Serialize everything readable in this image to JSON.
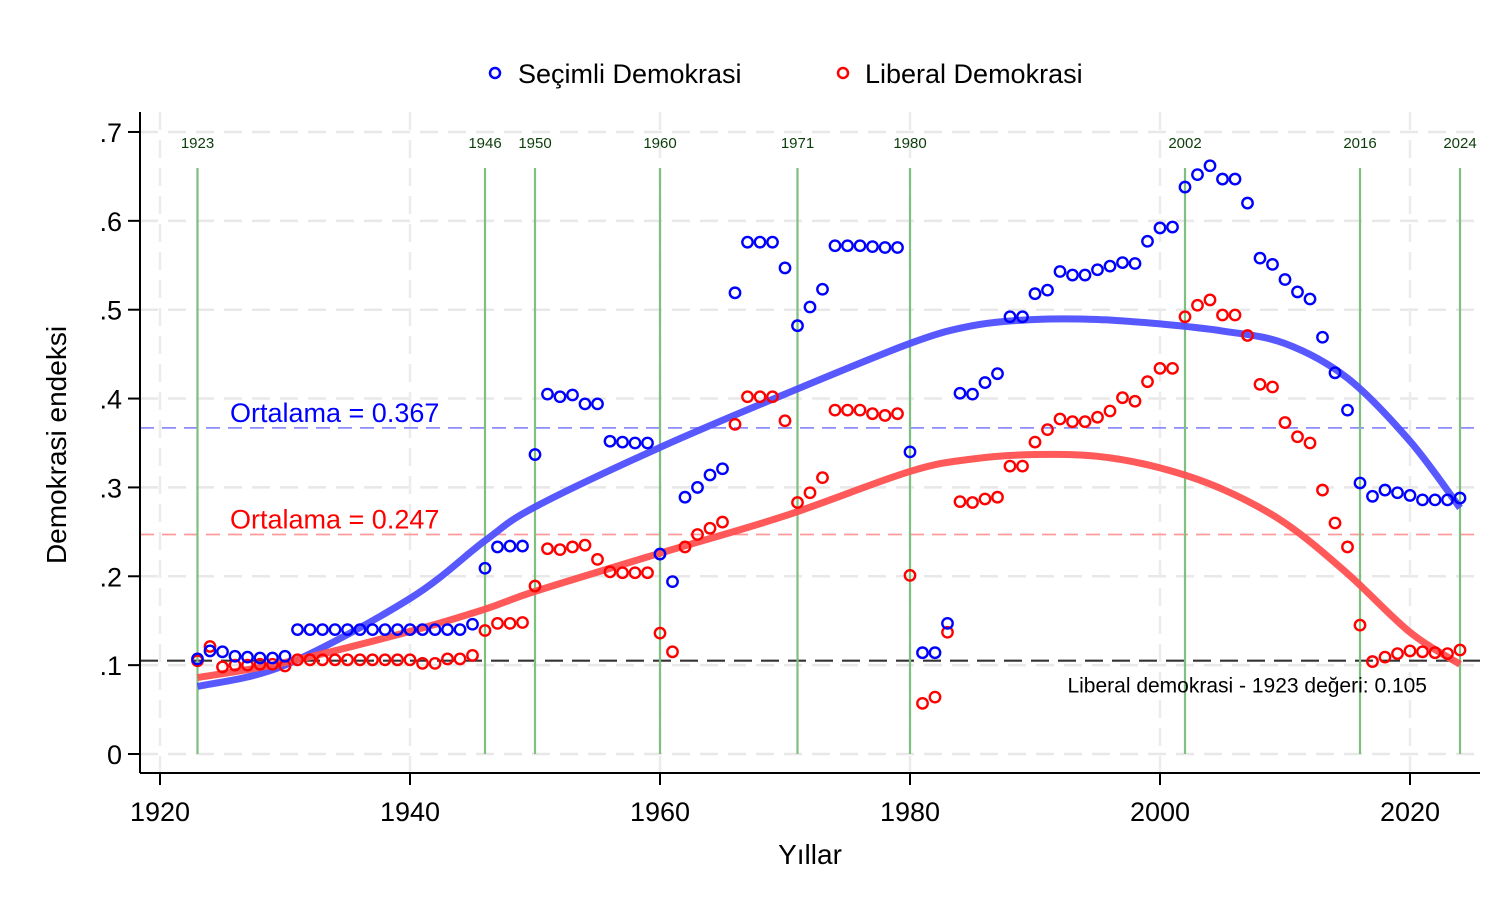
{
  "chart_data": {
    "type": "scatter",
    "title": "",
    "xlabel": "Yıllar",
    "ylabel": "Demokrasi endeksi",
    "xlim": [
      1918,
      2027
    ],
    "ylim": [
      -0.02,
      0.72
    ],
    "x_ticks": [
      1920,
      1940,
      1960,
      1980,
      2000,
      2020
    ],
    "x_tick_labels": [
      "1920",
      "1940",
      "1960",
      "1980",
      "2000",
      "2020"
    ],
    "y_ticks": [
      0,
      0.1,
      0.2,
      0.3,
      0.4,
      0.5,
      0.6,
      0.7
    ],
    "y_tick_labels": [
      "0",
      ".1",
      ".2",
      ".3",
      ".4",
      ".5",
      ".6",
      ".7"
    ],
    "grid": true,
    "legend_position": "top-center",
    "x": [
      1923,
      1924,
      1925,
      1926,
      1927,
      1928,
      1929,
      1930,
      1931,
      1932,
      1933,
      1934,
      1935,
      1936,
      1937,
      1938,
      1939,
      1940,
      1941,
      1942,
      1943,
      1944,
      1945,
      1946,
      1947,
      1948,
      1949,
      1950,
      1951,
      1952,
      1953,
      1954,
      1955,
      1956,
      1957,
      1958,
      1959,
      1960,
      1961,
      1962,
      1963,
      1964,
      1965,
      1966,
      1967,
      1968,
      1969,
      1970,
      1971,
      1972,
      1973,
      1974,
      1975,
      1976,
      1977,
      1978,
      1979,
      1980,
      1981,
      1982,
      1983,
      1984,
      1985,
      1986,
      1987,
      1988,
      1989,
      1990,
      1991,
      1992,
      1993,
      1994,
      1995,
      1996,
      1997,
      1998,
      1999,
      2000,
      2001,
      2002,
      2003,
      2004,
      2005,
      2006,
      2007,
      2008,
      2009,
      2010,
      2011,
      2012,
      2013,
      2014,
      2015,
      2016,
      2017,
      2018,
      2019,
      2020,
      2021,
      2022,
      2023,
      2024
    ],
    "series": [
      {
        "name": "Seçimli Demokrasi",
        "color": "#0000ff",
        "marker": "hollow-circle",
        "values": [
          0.107,
          0.116,
          0.115,
          0.11,
          0.109,
          0.108,
          0.108,
          0.11,
          0.14,
          0.14,
          0.14,
          0.14,
          0.14,
          0.14,
          0.14,
          0.14,
          0.14,
          0.14,
          0.14,
          0.14,
          0.14,
          0.14,
          0.146,
          0.209,
          0.233,
          0.234,
          0.234,
          0.337,
          0.405,
          0.402,
          0.404,
          0.394,
          0.394,
          0.352,
          0.351,
          0.35,
          0.35,
          0.225,
          0.194,
          0.289,
          0.3,
          0.314,
          0.321,
          0.519,
          0.576,
          0.576,
          0.576,
          0.547,
          0.482,
          0.503,
          0.523,
          0.572,
          0.572,
          0.572,
          0.571,
          0.57,
          0.57,
          0.34,
          0.114,
          0.114,
          0.147,
          0.406,
          0.405,
          0.418,
          0.428,
          0.492,
          0.492,
          0.518,
          0.522,
          0.543,
          0.539,
          0.539,
          0.545,
          0.549,
          0.553,
          0.552,
          0.577,
          0.592,
          0.593,
          0.638,
          0.652,
          0.662,
          0.647,
          0.647,
          0.62,
          0.558,
          0.551,
          0.534,
          0.52,
          0.512,
          0.469,
          0.429,
          0.387,
          0.305,
          0.29,
          0.297,
          0.294,
          0.291,
          0.286,
          0.286,
          0.286,
          0.288
        ]
      },
      {
        "name": "Liberal Demokrasi",
        "color": "#ff0000",
        "marker": "hollow-circle",
        "values": [
          0.105,
          0.121,
          0.098,
          0.1,
          0.1,
          0.101,
          0.101,
          0.099,
          0.106,
          0.106,
          0.106,
          0.106,
          0.106,
          0.106,
          0.106,
          0.106,
          0.106,
          0.106,
          0.102,
          0.102,
          0.107,
          0.107,
          0.111,
          0.139,
          0.147,
          0.147,
          0.148,
          0.189,
          0.231,
          0.23,
          0.233,
          0.235,
          0.219,
          0.205,
          0.204,
          0.204,
          0.204,
          0.136,
          0.115,
          0.233,
          0.247,
          0.254,
          0.261,
          0.371,
          0.402,
          0.402,
          0.402,
          0.375,
          0.283,
          0.294,
          0.311,
          0.387,
          0.387,
          0.387,
          0.383,
          0.381,
          0.383,
          0.201,
          0.057,
          0.064,
          0.137,
          0.284,
          0.283,
          0.287,
          0.289,
          0.324,
          0.324,
          0.351,
          0.365,
          0.377,
          0.374,
          0.374,
          0.379,
          0.386,
          0.401,
          0.397,
          0.419,
          0.434,
          0.434,
          0.492,
          0.505,
          0.511,
          0.494,
          0.494,
          0.471,
          0.416,
          0.413,
          0.373,
          0.357,
          0.35,
          0.297,
          0.26,
          0.233,
          0.145,
          0.104,
          0.109,
          0.113,
          0.116,
          0.115,
          0.114,
          0.113,
          0.117
        ]
      }
    ],
    "fit_lines": [
      {
        "name": "Seçimli Demokrasi trend",
        "color": "#4f4fff",
        "x": [
          1923,
          1930,
          1940,
          1946,
          1950,
          1960,
          1970,
          1980,
          1985,
          1990,
          1995,
          2000,
          2005,
          2010,
          2015,
          2020,
          2024
        ],
        "y": [
          0.076,
          0.1,
          0.175,
          0.24,
          0.278,
          0.345,
          0.405,
          0.462,
          0.482,
          0.489,
          0.489,
          0.484,
          0.476,
          0.462,
          0.423,
          0.352,
          0.277
        ]
      },
      {
        "name": "Liberal Demokrasi trend",
        "color": "#ff5050",
        "x": [
          1923,
          1930,
          1940,
          1946,
          1950,
          1960,
          1970,
          1980,
          1985,
          1990,
          1995,
          2000,
          2005,
          2010,
          2015,
          2020,
          2024
        ],
        "y": [
          0.086,
          0.103,
          0.138,
          0.163,
          0.183,
          0.226,
          0.268,
          0.318,
          0.332,
          0.337,
          0.335,
          0.322,
          0.298,
          0.26,
          0.203,
          0.137,
          0.101
        ]
      }
    ],
    "reference_lines": [
      {
        "type": "horizontal",
        "value": 0.367,
        "color": "#8c8cff",
        "style": "dashed",
        "label": "Ortalama = 0.367",
        "label_color": "#0000ff"
      },
      {
        "type": "horizontal",
        "value": 0.247,
        "color": "#ff9a9a",
        "style": "dashed",
        "label": "Ortalama = 0.247",
        "label_color": "#ff0000"
      },
      {
        "type": "horizontal",
        "value": 0.105,
        "color": "#333333",
        "style": "dashed",
        "label": "Liberal demokrasi - 1923 değeri: 0.105",
        "label_color": "#000000"
      }
    ],
    "event_years": [
      1923,
      1946,
      1950,
      1960,
      1971,
      1980,
      2002,
      2016,
      2024
    ],
    "event_labels": [
      "1923",
      "1946",
      "1950",
      "1960",
      "1971",
      "1980",
      "2002",
      "2016",
      "2024"
    ],
    "event_line_color": "#7fbf7f"
  }
}
